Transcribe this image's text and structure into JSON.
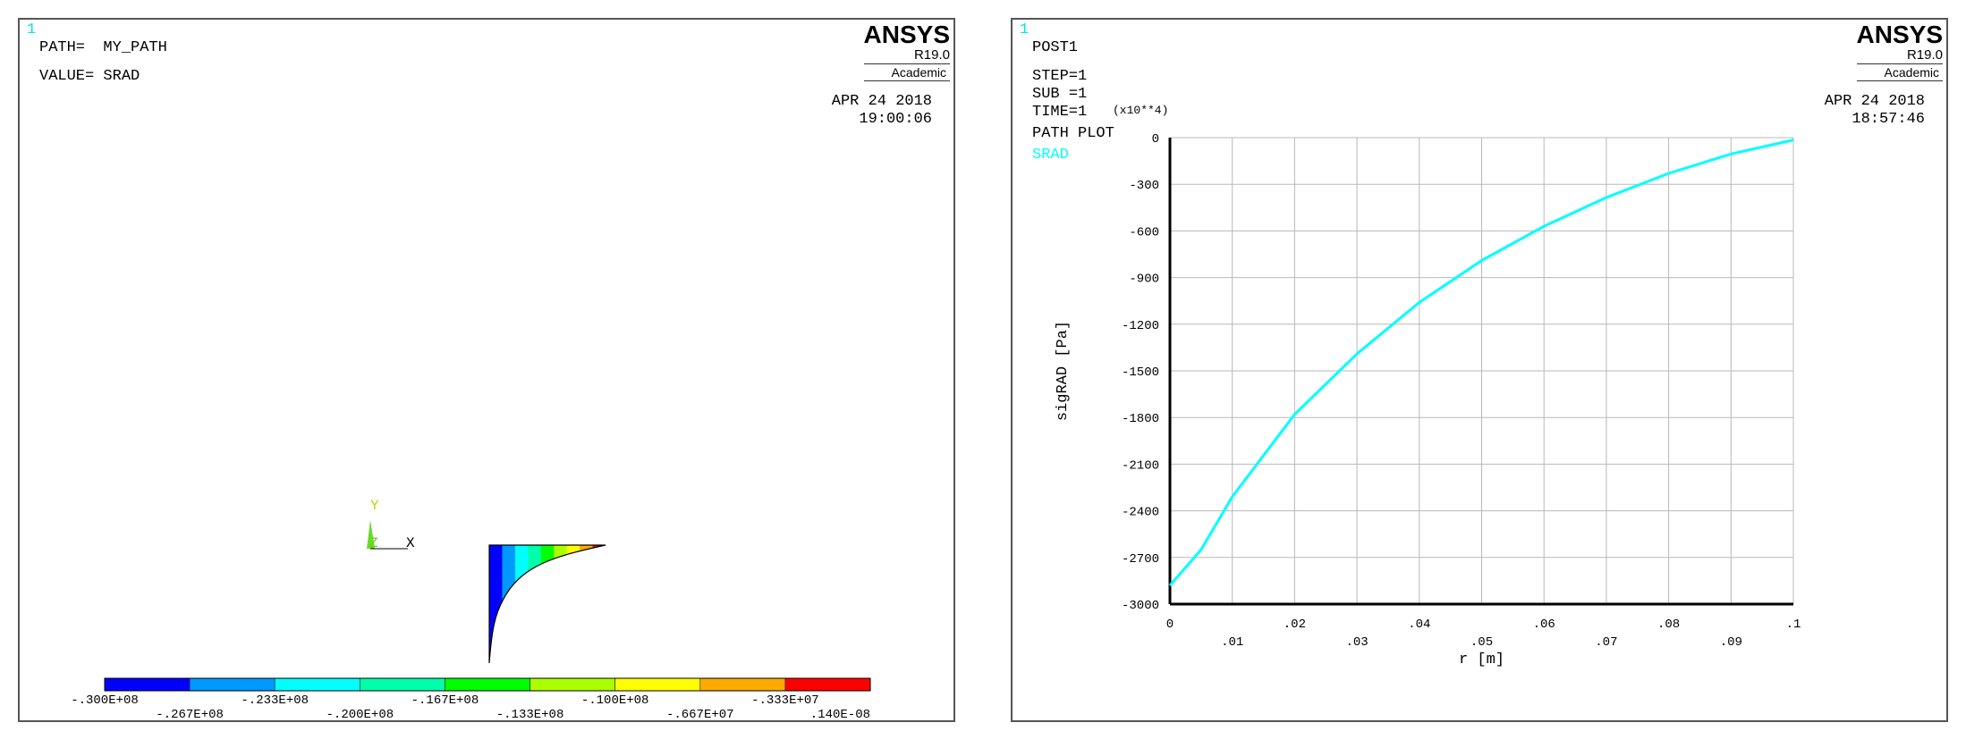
{
  "colors": {
    "curve": "#00ffff",
    "grid": "#b8b8b8",
    "axis": "#000000",
    "window_number": "#00e5e5"
  },
  "left_window": {
    "number": "1",
    "path_line": "PATH=  MY_PATH",
    "value_line": "VALUE= SRAD",
    "logo": {
      "brand": "ANSYS",
      "version": "R19.0",
      "edition": "Academic"
    },
    "date": "APR 24 2018",
    "time": "19:00:06",
    "triad": {
      "y": "Y",
      "z": "Z",
      "x": "X"
    },
    "contour_legend": {
      "colors": [
        "#0000ff",
        "#0099ff",
        "#00ffff",
        "#00ffaa",
        "#00ff00",
        "#aaff00",
        "#ffff00",
        "#ffaa00",
        "#ff0000"
      ],
      "labels_top": [
        "-.300E+08",
        "-.233E+08",
        "-.167E+08",
        "-.100E+08",
        "-.333E+07"
      ],
      "labels_bottom": [
        "-.267E+08",
        "-.200E+08",
        "-.133E+08",
        "-.667E+07",
        ".140E-08"
      ]
    }
  },
  "right_window": {
    "number": "1",
    "info_lines": [
      "POST1",
      "",
      "STEP=1",
      "SUB =1",
      "TIME=1",
      "PATH PLOT"
    ],
    "legend_label": "SRAD",
    "logo": {
      "brand": "ANSYS",
      "version": "R19.0",
      "edition": "Academic"
    },
    "date": "APR 24 2018",
    "time": "18:57:46",
    "y_multiplier": "(x10**4)"
  },
  "chart_data": {
    "type": "line",
    "title": "PATH PLOT",
    "xlabel": "r  [m]",
    "ylabel": "sigRAD  [Pa]",
    "xlim": [
      0,
      0.1
    ],
    "ylim": [
      -3000,
      0
    ],
    "y_scale_note": "(x10**4)",
    "x_ticks": [
      "0",
      ".01",
      ".02",
      ".03",
      ".04",
      ".05",
      ".06",
      ".07",
      ".08",
      ".09",
      ".1"
    ],
    "y_ticks": [
      "0",
      "-300",
      "-600",
      "-900",
      "-1200",
      "-1500",
      "-1800",
      "-2100",
      "-2400",
      "-2700",
      "-3000"
    ],
    "grid": true,
    "series": [
      {
        "name": "SRAD",
        "x": [
          0,
          0.005,
          0.01,
          0.02,
          0.03,
          0.04,
          0.05,
          0.06,
          0.07,
          0.08,
          0.09,
          0.1
        ],
        "y": [
          -2880,
          -2650,
          -2310,
          -1780,
          -1390,
          -1060,
          -790,
          -570,
          -385,
          -230,
          -105,
          -15
        ]
      }
    ]
  }
}
